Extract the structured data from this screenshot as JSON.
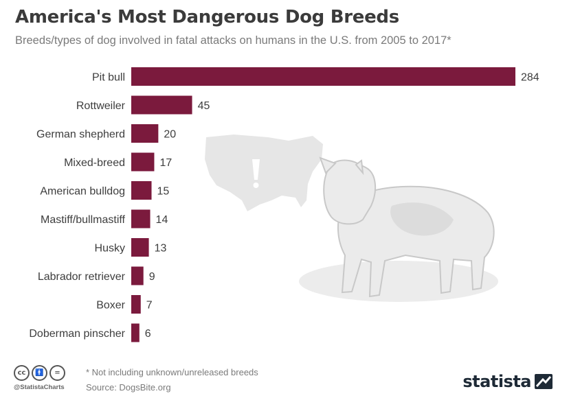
{
  "header": {
    "title": "America's Most Dangerous Dog Breeds",
    "subtitle": "Breeds/types of dog involved in fatal attacks on humans in the U.S. from 2005 to 2017*"
  },
  "chart_data": {
    "type": "bar",
    "orientation": "horizontal",
    "title": "America's Most Dangerous Dog Breeds",
    "subtitle": "Breeds/types of dog involved in fatal attacks on humans in the U.S. from 2005 to 2017*",
    "categories": [
      "Pit bull",
      "Rottweiler",
      "German shepherd",
      "Mixed-breed",
      "American bulldog",
      "Mastiff/bullmastiff",
      "Husky",
      "Labrador retriever",
      "Boxer",
      "Doberman pinscher"
    ],
    "values": [
      284,
      45,
      20,
      17,
      15,
      14,
      13,
      9,
      7,
      6
    ],
    "bar_color": "#7b1a3d",
    "xlim": [
      0,
      284
    ],
    "grid": false,
    "data_labels": true
  },
  "footer": {
    "note": "* Not including unknown/unreleased breeds",
    "source": "Source: DogsBite.org",
    "handle": "@StatistaCharts",
    "license_icons": [
      "cc",
      "by",
      "nd"
    ],
    "logo_text": "statista"
  },
  "colors": {
    "bar": "#7b1a3d",
    "title": "#3b3b3b",
    "subtitle": "#7a7a7a",
    "illustration": "#e3e3e3",
    "logo": "#1e2a36"
  }
}
